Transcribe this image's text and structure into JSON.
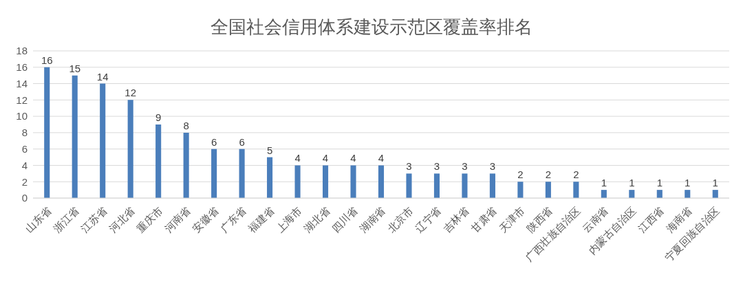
{
  "chart_data": {
    "type": "bar",
    "title": "全国社会信用体系建设示范区覆盖率排名",
    "categories": [
      "山东省",
      "浙江省",
      "江苏省",
      "河北省",
      "重庆市",
      "河南省",
      "安徽省",
      "广东省",
      "福建省",
      "上海市",
      "湖北省",
      "四川省",
      "湖南省",
      "北京市",
      "辽宁省",
      "吉林省",
      "甘肃省",
      "天津市",
      "陕西省",
      "广西壮族自治区",
      "云南省",
      "内蒙古自治区",
      "江西省",
      "海南省",
      "宁夏回族自治区"
    ],
    "values": [
      16,
      15,
      14,
      12,
      9,
      8,
      6,
      6,
      5,
      4,
      4,
      4,
      4,
      3,
      3,
      3,
      3,
      2,
      2,
      2,
      1,
      1,
      1,
      1,
      1
    ],
    "color": "#4a7ebb",
    "ylim": [
      0,
      18
    ],
    "yticks": [
      0,
      2,
      4,
      6,
      8,
      10,
      12,
      14,
      16,
      18
    ],
    "grid": "y",
    "data_labels": true,
    "legend": false
  }
}
